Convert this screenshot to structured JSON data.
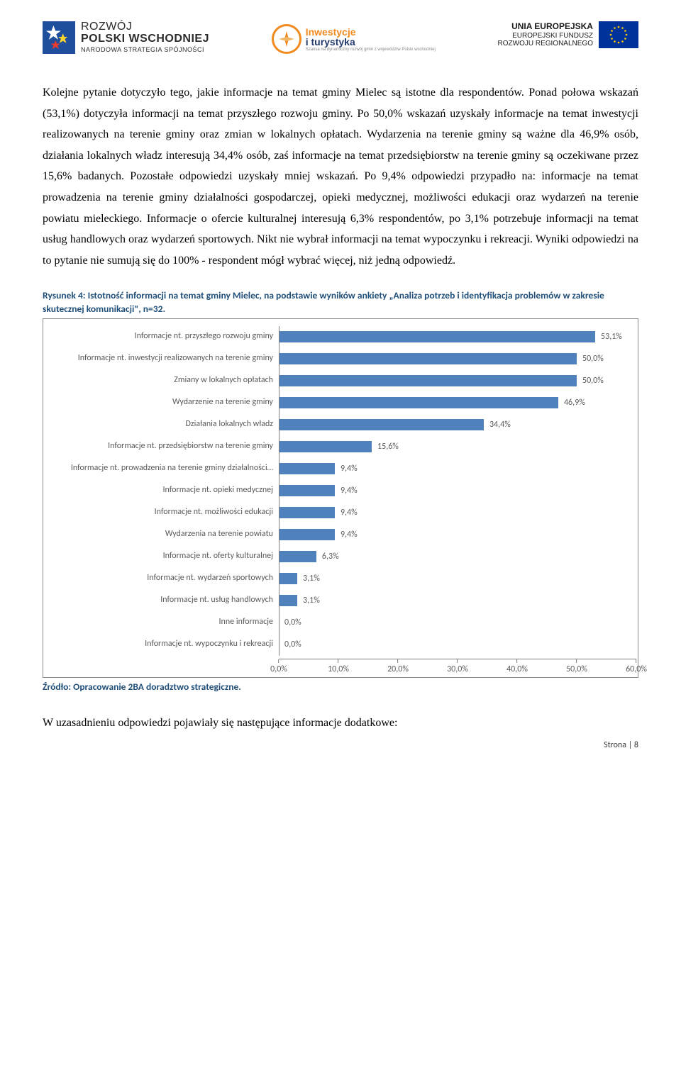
{
  "header": {
    "logo_left": {
      "line1": "ROZWÓJ",
      "line2": "POLSKI WSCHODNIEJ",
      "line3": "NARODOWA STRATEGIA SPÓJNOŚCI"
    },
    "logo_center": {
      "line1": "Inwestycje",
      "line2": "i turystyka",
      "line3": "Szansa na dynamiczny rozwój gmin z województw Polski wschodniej"
    },
    "logo_right": {
      "line1": "UNIA EUROPEJSKA",
      "line2": "EUROPEJSKI FUNDUSZ",
      "line3": "ROZWOJU REGIONALNEGO"
    }
  },
  "body_paragraph": "Kolejne pytanie dotyczyło tego, jakie informacje na temat gminy Mielec są istotne dla respondentów. Ponad połowa wskazań (53,1%) dotyczyła informacji na temat przyszłego rozwoju gminy. Po 50,0% wskazań uzyskały informacje na temat inwestycji realizowanych na terenie gminy oraz zmian w lokalnych opłatach. Wydarzenia na terenie gminy są ważne dla 46,9% osób, działania lokalnych władz interesują 34,4% osób, zaś informacje na temat przedsiębiorstw na terenie gminy są oczekiwane przez 15,6% badanych. Pozostałe odpowiedzi uzyskały mniej wskazań. Po 9,4% odpowiedzi przypadło na: informacje na temat prowadzenia na terenie gminy działalności gospodarczej, opieki medycznej, możliwości edukacji oraz wydarzeń na terenie powiatu mieleckiego. Informacje o ofercie kulturalnej interesują 6,3% respondentów, po 3,1% potrzebuje informacji na temat usług handlowych oraz wydarzeń sportowych. Nikt nie wybrał informacji na temat wypoczynku i rekreacji. Wyniki odpowiedzi na to pytanie nie sumują się do 100% - respondent mógł wybrać więcej, niż jedną odpowiedź.",
  "figure_caption": "Rysunek 4: Istotność informacji na temat gminy Mielec, na podstawie wyników ankiety „Analiza potrzeb i identyfikacja problemów w zakresie skutecznej komunikacji\", n=32.",
  "chart": {
    "type": "bar-horizontal",
    "bar_color": "#4f81bd",
    "text_color": "#595959",
    "grid_color": "#808080",
    "background_color": "#ffffff",
    "border_color": "#8a8a8a",
    "x_max": 60.0,
    "x_tick_step": 10.0,
    "x_ticks": [
      "0,0%",
      "10,0%",
      "20,0%",
      "30,0%",
      "40,0%",
      "50,0%",
      "60,0%"
    ],
    "label_fontsize": 12,
    "rows": [
      {
        "label": "Informacje nt. przyszłego rozwoju gminy",
        "value": 53.1,
        "display": "53,1%"
      },
      {
        "label": "Informacje nt. inwestycji realizowanych na terenie gminy",
        "value": 50.0,
        "display": "50,0%"
      },
      {
        "label": "Zmiany w lokalnych opłatach",
        "value": 50.0,
        "display": "50,0%"
      },
      {
        "label": "Wydarzenie na terenie gminy",
        "value": 46.9,
        "display": "46,9%"
      },
      {
        "label": "Działania lokalnych władz",
        "value": 34.4,
        "display": "34,4%"
      },
      {
        "label": "Informacje nt. przedsiębiorstw na terenie gminy",
        "value": 15.6,
        "display": "15,6%"
      },
      {
        "label": "Informacje nt. prowadzenia na terenie gminy działalności…",
        "value": 9.4,
        "display": "9,4%"
      },
      {
        "label": "Informacje nt. opieki medycznej",
        "value": 9.4,
        "display": "9,4%"
      },
      {
        "label": "Informacje nt. możliwości edukacji",
        "value": 9.4,
        "display": "9,4%"
      },
      {
        "label": "Wydarzenia na terenie powiatu",
        "value": 9.4,
        "display": "9,4%"
      },
      {
        "label": "Informacje nt. oferty kulturalnej",
        "value": 6.3,
        "display": "6,3%"
      },
      {
        "label": "Informacje nt. wydarzeń sportowych",
        "value": 3.1,
        "display": "3,1%"
      },
      {
        "label": "Informacje nt. usług handlowych",
        "value": 3.1,
        "display": "3,1%"
      },
      {
        "label": "Inne informacje",
        "value": 0.0,
        "display": "0,0%"
      },
      {
        "label": "Informacje nt. wypoczynku i rekreacji",
        "value": 0.0,
        "display": "0,0%"
      }
    ]
  },
  "source_line": "Źródło: Opracowanie 2BA doradztwo strategiczne.",
  "followup_text": "W uzasadnieniu odpowiedzi pojawiały się następujące informacje dodatkowe:",
  "page_number": "Strona | 8"
}
